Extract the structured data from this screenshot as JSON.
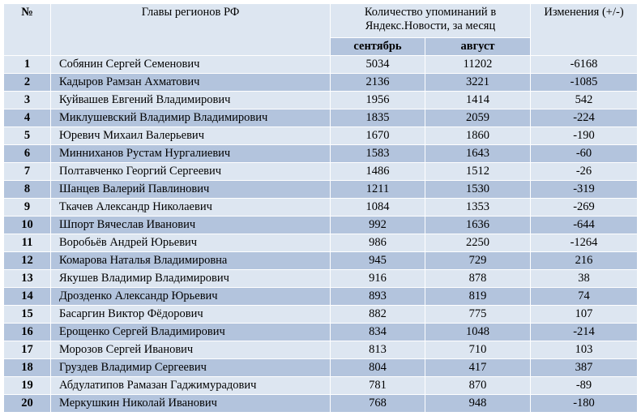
{
  "header": {
    "num": "№",
    "name": "Главы регионов РФ",
    "count": "Количество упоминаний в Яндекс.Новости, за месяц",
    "september": "сентябрь",
    "august": "август",
    "change": "Изменения (+/-)"
  },
  "rows": [
    {
      "num": "1",
      "name": "Собянин Сергей Семенович",
      "sep": "5034",
      "aug": "11202",
      "change": "-6168"
    },
    {
      "num": "2",
      "name": "Кадыров Рамзан Ахматович",
      "sep": "2136",
      "aug": "3221",
      "change": "-1085"
    },
    {
      "num": "3",
      "name": "Куйвашев Евгений Владимирович",
      "sep": "1956",
      "aug": "1414",
      "change": "542"
    },
    {
      "num": "4",
      "name": "Миклушевский Владимир Владимирович",
      "sep": "1835",
      "aug": "2059",
      "change": "-224"
    },
    {
      "num": "5",
      "name": "Юревич Михаил Валерьевич",
      "sep": "1670",
      "aug": "1860",
      "change": "-190"
    },
    {
      "num": "6",
      "name": "Минниханов Рустам Нургалиевич",
      "sep": "1583",
      "aug": "1643",
      "change": "-60"
    },
    {
      "num": "7",
      "name": "Полтавченко Георгий Сергеевич",
      "sep": "1486",
      "aug": "1512",
      "change": "-26"
    },
    {
      "num": "8",
      "name": "Шанцев Валерий Павлинович",
      "sep": "1211",
      "aug": "1530",
      "change": "-319"
    },
    {
      "num": "9",
      "name": "Ткачев Александр Николаевич",
      "sep": "1084",
      "aug": "1353",
      "change": "-269"
    },
    {
      "num": "10",
      "name": "Шпорт Вячеслав Иванович",
      "sep": "992",
      "aug": "1636",
      "change": "-644"
    },
    {
      "num": "11",
      "name": "Воробьёв Андрей Юрьевич",
      "sep": "986",
      "aug": "2250",
      "change": "-1264"
    },
    {
      "num": "12",
      "name": "Комарова Наталья Владимировна",
      "sep": "945",
      "aug": "729",
      "change": "216"
    },
    {
      "num": "13",
      "name": "Якушев Владимир Владимирович",
      "sep": "916",
      "aug": "878",
      "change": "38"
    },
    {
      "num": "14",
      "name": "Дрозденко Александр Юрьевич",
      "sep": "893",
      "aug": "819",
      "change": "74"
    },
    {
      "num": "15",
      "name": "Басаргин Виктор Фёдорович",
      "sep": "882",
      "aug": "775",
      "change": "107"
    },
    {
      "num": "16",
      "name": "Ерощенко Сергей Владимирович",
      "sep": "834",
      "aug": "1048",
      "change": "-214"
    },
    {
      "num": "17",
      "name": "Морозов Сергей Иванович",
      "sep": "813",
      "aug": "710",
      "change": "103"
    },
    {
      "num": "18",
      "name": "Груздев Владимир Сергеевич",
      "sep": "804",
      "aug": "417",
      "change": "387"
    },
    {
      "num": "19",
      "name": "Абдулатипов Рамазан Гаджимурадович",
      "sep": "781",
      "aug": "870",
      "change": "-89"
    },
    {
      "num": "20",
      "name": "Меркушкин Николай Иванович",
      "sep": "768",
      "aug": "948",
      "change": "-180"
    }
  ],
  "colors": {
    "light_row": "#dde6f1",
    "dark_row": "#b3c4dd",
    "border": "#ffffff"
  }
}
